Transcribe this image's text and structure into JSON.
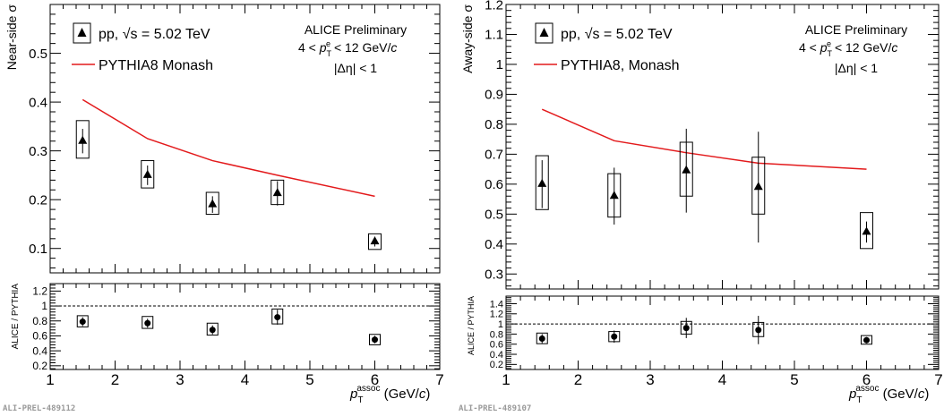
{
  "chart_data": [
    {
      "type": "scatter",
      "panel": "left",
      "main": {
        "ylabel": "Near-side σ",
        "xlim": [
          1,
          7
        ],
        "ylim": [
          0.05,
          0.6
        ],
        "yticks": [
          0.1,
          0.2,
          0.3,
          0.4,
          0.5
        ],
        "ytick_labels": [
          "0.1",
          "0.2",
          "0.3",
          "0.4",
          "0.5"
        ],
        "legend": {
          "data": "pp, √s = 5.02 TeV",
          "model": "PYTHIA8 Monash"
        },
        "annotation": [
          "ALICE Preliminary",
          "4 < pTe < 12 GeV/c",
          "|Δη| < 1"
        ],
        "data": [
          {
            "x": 1.5,
            "y": 0.32,
            "stat": 0.025,
            "sys_lo": 0.285,
            "sys_hi": 0.362
          },
          {
            "x": 2.5,
            "y": 0.25,
            "stat": 0.02,
            "sys_lo": 0.224,
            "sys_hi": 0.28
          },
          {
            "x": 3.5,
            "y": 0.19,
            "stat": 0.017,
            "sys_lo": 0.17,
            "sys_hi": 0.215
          },
          {
            "x": 4.5,
            "y": 0.213,
            "stat": 0.025,
            "sys_lo": 0.19,
            "sys_hi": 0.24
          },
          {
            "x": 6.0,
            "y": 0.114,
            "stat": 0.01,
            "sys_lo": 0.098,
            "sys_hi": 0.13
          }
        ],
        "model_x": [
          1.5,
          2.5,
          3.5,
          4.5,
          6.0
        ],
        "model_y": [
          0.405,
          0.325,
          0.28,
          0.25,
          0.207
        ]
      },
      "ratio": {
        "ylabel": "ALICE / PYTHIA",
        "ylim": [
          0.15,
          1.3
        ],
        "yticks": [
          0.2,
          0.4,
          0.6,
          0.8,
          1,
          1.2
        ],
        "ytick_labels": [
          "0.2",
          "0.4",
          "0.6",
          "0.8",
          "1",
          "1.2"
        ],
        "reference": 1,
        "data": [
          {
            "x": 1.5,
            "y": 0.79,
            "stat": 0.06,
            "sys_lo": 0.72,
            "sys_hi": 0.87
          },
          {
            "x": 2.5,
            "y": 0.77,
            "stat": 0.06,
            "sys_lo": 0.7,
            "sys_hi": 0.86
          },
          {
            "x": 3.5,
            "y": 0.68,
            "stat": 0.06,
            "sys_lo": 0.61,
            "sys_hi": 0.77
          },
          {
            "x": 4.5,
            "y": 0.85,
            "stat": 0.1,
            "sys_lo": 0.76,
            "sys_hi": 0.96
          },
          {
            "x": 6.0,
            "y": 0.55,
            "stat": 0.05,
            "sys_lo": 0.48,
            "sys_hi": 0.62
          }
        ]
      },
      "xticks": [
        1,
        2,
        3,
        4,
        5,
        6,
        7
      ],
      "xtick_labels": [
        "1",
        "2",
        "3",
        "4",
        "5",
        "6",
        "7"
      ],
      "xlabel": "pTassoc (GeV/c)",
      "watermark": "ALI-PREL-489112"
    },
    {
      "type": "scatter",
      "panel": "right",
      "main": {
        "ylabel": "Away-side σ",
        "xlim": [
          1,
          7
        ],
        "ylim": [
          0.25,
          1.2
        ],
        "yticks": [
          0.3,
          0.4,
          0.5,
          0.6,
          0.7,
          0.8,
          0.9,
          1,
          1.1,
          1.2
        ],
        "ytick_labels": [
          "0.3",
          "0.4",
          "0.5",
          "0.6",
          "0.7",
          "0.8",
          "0.9",
          "1",
          "1.1",
          "1.2"
        ],
        "legend": {
          "data": "pp, √s = 5.02 TeV",
          "model": "PYTHIA8, Monash"
        },
        "annotation": [
          "ALICE Preliminary",
          "4 < pTe < 12 GeV/c",
          "|Δη| < 1"
        ],
        "data": [
          {
            "x": 1.5,
            "y": 0.6,
            "stat": 0.08,
            "sys_lo": 0.515,
            "sys_hi": 0.695
          },
          {
            "x": 2.5,
            "y": 0.56,
            "stat": 0.095,
            "sys_lo": 0.49,
            "sys_hi": 0.635
          },
          {
            "x": 3.5,
            "y": 0.645,
            "stat": 0.14,
            "sys_lo": 0.56,
            "sys_hi": 0.74
          },
          {
            "x": 4.5,
            "y": 0.59,
            "stat": 0.185,
            "sys_lo": 0.5,
            "sys_hi": 0.69
          },
          {
            "x": 6.0,
            "y": 0.44,
            "stat": 0.035,
            "sys_lo": 0.385,
            "sys_hi": 0.505
          }
        ],
        "model_x": [
          1.5,
          2.5,
          3.5,
          4.5,
          6.0
        ],
        "model_y": [
          0.85,
          0.745,
          0.705,
          0.67,
          0.65
        ]
      },
      "ratio": {
        "ylabel": "ALICE / PYTHIA",
        "ylim": [
          0.1,
          1.55
        ],
        "yticks": [
          0.2,
          0.4,
          0.6,
          0.8,
          1,
          1.2,
          1.4
        ],
        "ytick_labels": [
          "0.2",
          "0.4",
          "0.6",
          "0.8",
          "1",
          "1.2",
          "1.4"
        ],
        "reference": 1,
        "data": [
          {
            "x": 1.5,
            "y": 0.71,
            "stat": 0.09,
            "sys_lo": 0.61,
            "sys_hi": 0.82
          },
          {
            "x": 2.5,
            "y": 0.75,
            "stat": 0.12,
            "sys_lo": 0.65,
            "sys_hi": 0.85
          },
          {
            "x": 3.5,
            "y": 0.92,
            "stat": 0.2,
            "sys_lo": 0.8,
            "sys_hi": 1.05
          },
          {
            "x": 4.5,
            "y": 0.88,
            "stat": 0.28,
            "sys_lo": 0.75,
            "sys_hi": 1.03
          },
          {
            "x": 6.0,
            "y": 0.68,
            "stat": 0.06,
            "sys_lo": 0.6,
            "sys_hi": 0.77
          }
        ]
      },
      "xticks": [
        1,
        2,
        3,
        4,
        5,
        6,
        7
      ],
      "xtick_labels": [
        "1",
        "2",
        "3",
        "4",
        "5",
        "6",
        "7"
      ],
      "xlabel": "pTassoc (GeV/c)",
      "watermark": "ALI-PREL-489107"
    }
  ],
  "colors": {
    "data": "#000000",
    "model": "#e31a1c",
    "axis": "#000000",
    "watermark": "#999999"
  }
}
